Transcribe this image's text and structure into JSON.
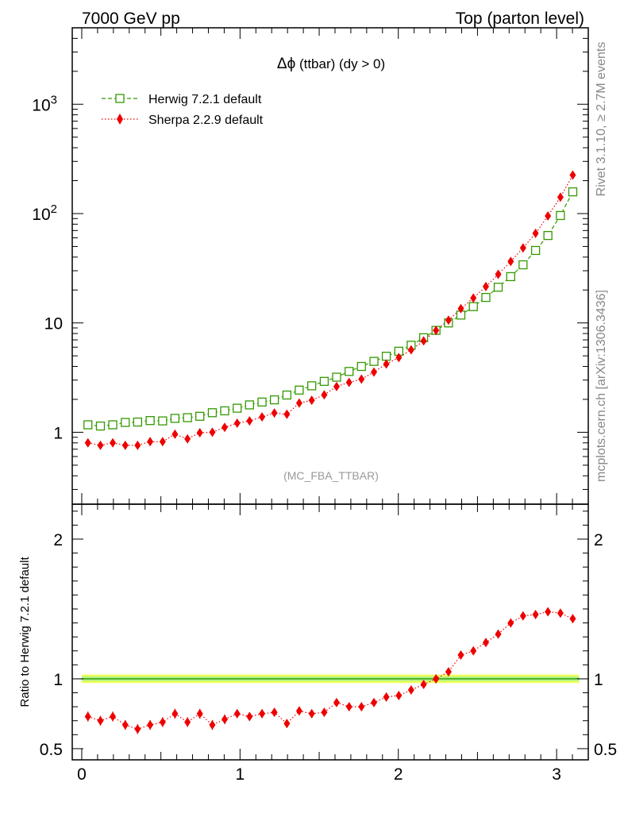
{
  "header": {
    "left": "7000 GeV pp",
    "right": "Top (parton level)"
  },
  "side_text": {
    "rivet": "Rivet 3.1.10, ≥ 2.7M events",
    "mcplots": "mcplots.cern.ch [arXiv:1306.3436]"
  },
  "chart_data": [
    {
      "type": "scatter",
      "panel": "main",
      "title_symbol": "Δϕ",
      "title_rest": " (ttbar) (dy > 0)",
      "analysis_label": "(MC_FBA_TTBAR)",
      "yscale": "log",
      "xlim": [
        -0.06,
        3.2
      ],
      "ylim": [
        0.22,
        5000
      ],
      "grid": false,
      "legend_position": "top-left",
      "y_tick_labels": [
        {
          "value": 1000,
          "base": "10",
          "exp": "3"
        },
        {
          "value": 100,
          "base": "10",
          "exp": "2"
        },
        {
          "value": 10,
          "base": "10",
          "exp": ""
        },
        {
          "value": 1,
          "base": "1",
          "exp": ""
        }
      ],
      "x": [
        0.039,
        0.118,
        0.196,
        0.275,
        0.353,
        0.432,
        0.511,
        0.589,
        0.668,
        0.746,
        0.825,
        0.903,
        0.982,
        1.06,
        1.139,
        1.217,
        1.296,
        1.374,
        1.453,
        1.532,
        1.61,
        1.689,
        1.767,
        1.846,
        1.924,
        2.003,
        2.081,
        2.16,
        2.238,
        2.317,
        2.395,
        2.474,
        2.553,
        2.631,
        2.71,
        2.788,
        2.867,
        2.945,
        3.024,
        3.102
      ],
      "series": [
        {
          "name": "Herwig 7.2.1 default",
          "color": "#339900",
          "marker": "open-square",
          "line": "dashed",
          "values": [
            1.17,
            1.14,
            1.17,
            1.23,
            1.24,
            1.28,
            1.27,
            1.34,
            1.36,
            1.4,
            1.51,
            1.57,
            1.66,
            1.78,
            1.89,
            1.98,
            2.19,
            2.43,
            2.66,
            2.92,
            3.19,
            3.6,
            4.0,
            4.45,
            4.96,
            5.51,
            6.25,
            7.32,
            8.55,
            10.0,
            11.8,
            14.1,
            17.1,
            21.2,
            26.5,
            34.0,
            46.0,
            63.0,
            96.0,
            158.0
          ]
        },
        {
          "name": "Sherpa 2.2.9 default",
          "color": "#ee0000",
          "marker": "filled-diamond",
          "line": "dotted",
          "values": [
            0.8,
            0.76,
            0.8,
            0.76,
            0.76,
            0.82,
            0.82,
            0.96,
            0.87,
            0.99,
            1.0,
            1.11,
            1.21,
            1.27,
            1.38,
            1.5,
            1.46,
            1.85,
            1.96,
            2.2,
            2.62,
            2.86,
            3.06,
            3.55,
            4.21,
            4.82,
            5.67,
            6.84,
            8.55,
            10.6,
            13.5,
            16.9,
            21.5,
            27.8,
            36.5,
            48.5,
            66.0,
            95.0,
            141.0,
            225.0
          ]
        }
      ]
    },
    {
      "type": "scatter",
      "panel": "ratio",
      "ylabel": "Ratio to Herwig 7.2.1 default",
      "xlim": [
        -0.06,
        3.2
      ],
      "ylim": [
        0.42,
        2.25
      ],
      "grid": false,
      "x_tick_labels": [
        "0",
        "1",
        "2",
        "3"
      ],
      "y_tick_labels": [
        "2",
        "1",
        "0.5"
      ],
      "reference_band": {
        "low": 0.97,
        "high": 1.03,
        "color_outer": "#eeff55",
        "color_inner": "#99ee99"
      },
      "series": [
        {
          "name": "Sherpa 2.2.9 default",
          "color": "#ee0000",
          "values": [
            0.73,
            0.7,
            0.73,
            0.67,
            0.64,
            0.67,
            0.69,
            0.75,
            0.69,
            0.75,
            0.67,
            0.71,
            0.75,
            0.73,
            0.75,
            0.76,
            0.68,
            0.77,
            0.75,
            0.76,
            0.83,
            0.8,
            0.8,
            0.83,
            0.87,
            0.88,
            0.92,
            0.96,
            1.0,
            1.05,
            1.17,
            1.2,
            1.26,
            1.32,
            1.4,
            1.45,
            1.46,
            1.48,
            1.47,
            1.43
          ],
          "errors": [
            0.035,
            0.035,
            0.035,
            0.035,
            0.035,
            0.035,
            0.035,
            0.035,
            0.035,
            0.035,
            0.035,
            0.035,
            0.03,
            0.03,
            0.03,
            0.03,
            0.03,
            0.03,
            0.03,
            0.025,
            0.025,
            0.025,
            0.025,
            0.025,
            0.025,
            0.025,
            0.025,
            0.02,
            0.02,
            0.02,
            0.02,
            0.02,
            0.02,
            0.02,
            0.02,
            0.02,
            0.02,
            0.02,
            0.02,
            0.02
          ]
        }
      ]
    }
  ]
}
